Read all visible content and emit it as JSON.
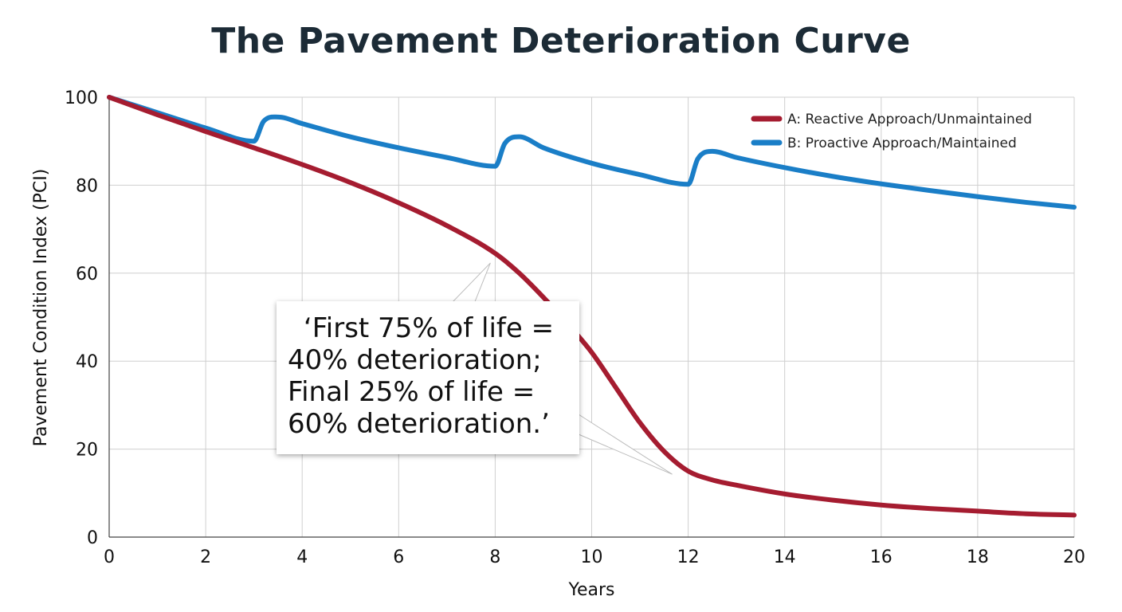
{
  "title": "The Pavement Deterioration Curve",
  "chart_data": {
    "type": "line",
    "title": "The Pavement Deterioration Curve",
    "xlabel": "Years",
    "ylabel": "Pavement Condition Index (PCI)",
    "xlim": [
      0,
      20
    ],
    "ylim": [
      0,
      100
    ],
    "xticks": [
      0,
      2,
      4,
      6,
      8,
      10,
      12,
      14,
      16,
      18,
      20
    ],
    "yticks": [
      0,
      20,
      40,
      60,
      80,
      100
    ],
    "grid": true,
    "legend_position": "top-right",
    "series": [
      {
        "name": "A: Reactive Approach/Unmaintained",
        "color": "#a51c30",
        "x": [
          0,
          1,
          2,
          3,
          4,
          5,
          6,
          7,
          8,
          8.5,
          9,
          9.5,
          10,
          10.5,
          11,
          11.5,
          12,
          12.5,
          13,
          14,
          15,
          16,
          17,
          18,
          19,
          20
        ],
        "y": [
          100,
          96,
          92.2,
          88.5,
          84.7,
          80.6,
          76,
          70.8,
          64.5,
          60,
          54.5,
          48.5,
          42,
          34,
          26,
          19.5,
          15,
          13,
          11.8,
          9.8,
          8.4,
          7.3,
          6.5,
          5.9,
          5.3,
          5
        ]
      },
      {
        "name": "B: Proactive Approach/Maintained",
        "color": "#1a7ec7",
        "x": [
          0,
          1,
          2,
          3,
          3.2,
          3.5,
          4,
          5,
          6,
          7,
          8,
          8.2,
          8.5,
          9,
          10,
          11,
          12,
          12.2,
          12.5,
          13,
          14,
          15,
          16,
          17,
          18,
          19,
          20
        ],
        "y": [
          100,
          96.5,
          93,
          90,
          94.5,
          95.5,
          94,
          91,
          88.5,
          86.3,
          84.3,
          89.5,
          91,
          88.5,
          85,
          82.4,
          80.2,
          86,
          87.7,
          86.3,
          84,
          82,
          80.3,
          78.8,
          77.4,
          76.1,
          75
        ]
      }
    ],
    "annotations": [
      {
        "text": "‘First 75% of life = 40% deterioration; Final 25% of life = 60% deterioration.’",
        "lines": [
          "‘First 75% of life =",
          "40% deterioration;",
          "Final 25% of life =",
          "60% deterioration.’"
        ],
        "points_to": [
          [
            8,
            64.5
          ],
          [
            12,
            15
          ]
        ]
      }
    ]
  }
}
